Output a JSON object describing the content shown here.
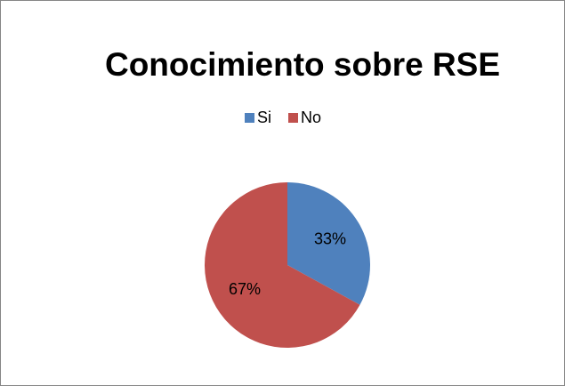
{
  "chart_data": {
    "type": "pie",
    "title": "Conocimiento sobre RSE",
    "categories": [
      "Si",
      "No"
    ],
    "values": [
      33,
      67
    ],
    "value_labels": [
      "33%",
      "67%"
    ],
    "colors": [
      "#4f81bd",
      "#c0504d"
    ],
    "legend": "top"
  }
}
